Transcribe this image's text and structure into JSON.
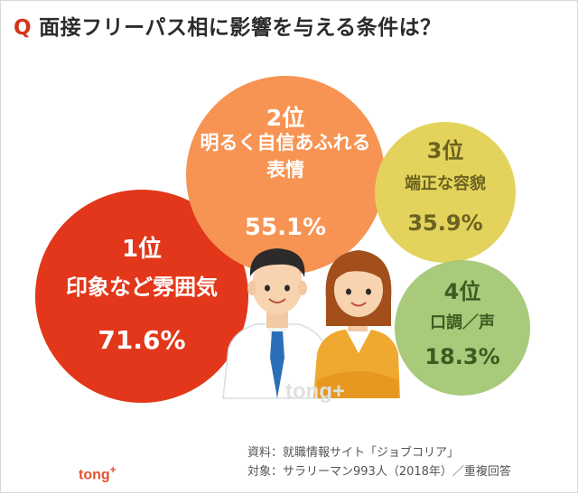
{
  "title": {
    "q_mark": "Q",
    "text": "面接フリーパス相に影響を与える条件は？"
  },
  "chart_data": {
    "type": "bubble",
    "unit": "%",
    "items": [
      {
        "rank": "1位",
        "lines": [
          "印象など雰囲気"
        ],
        "value": 71.6,
        "value_label": "71.6%",
        "color": "#e2371a",
        "text_color": "#ffffff"
      },
      {
        "rank": "2位",
        "lines": [
          "明るく自信あふれる",
          "表情"
        ],
        "value": 55.1,
        "value_label": "55.1%",
        "color": "#f79453",
        "text_color": "#ffffff"
      },
      {
        "rank": "3位",
        "lines": [
          "端正な容貌"
        ],
        "value": 35.9,
        "value_label": "35.9%",
        "color": "#e3d35c",
        "text_color": "#6b6320"
      },
      {
        "rank": "4位",
        "lines": [
          "口調／声"
        ],
        "value": 18.3,
        "value_label": "18.3%",
        "color": "#a9c97b",
        "text_color": "#3d5a20"
      }
    ]
  },
  "source": {
    "line1": "資料：就職情報サイト「ジョブコリア」",
    "line2": "対象：サラリーマン993人（2018年）／重複回答"
  },
  "logo": {
    "text": "tong",
    "plus": "+"
  },
  "watermark": "tong+"
}
